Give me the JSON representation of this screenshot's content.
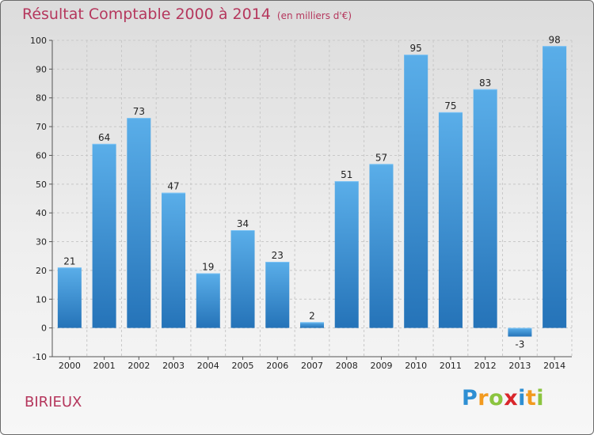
{
  "chart_data": {
    "type": "bar",
    "title": "Résultat Comptable 2000 à 2014",
    "subtitle": "(en milliers d'€)",
    "categories": [
      "2000",
      "2001",
      "2002",
      "2003",
      "2004",
      "2005",
      "2006",
      "2007",
      "2008",
      "2009",
      "2010",
      "2011",
      "2012",
      "2013",
      "2014"
    ],
    "values": [
      21,
      64,
      73,
      47,
      19,
      34,
      23,
      2,
      51,
      57,
      95,
      75,
      83,
      -3,
      98
    ],
    "ylim": [
      -10,
      100
    ],
    "yticks": [
      -10,
      0,
      10,
      20,
      30,
      40,
      50,
      60,
      70,
      80,
      90,
      100
    ],
    "xlabel": "",
    "ylabel": "",
    "grid": true,
    "bar_color": "#3f95d8"
  },
  "commune": "BIRIEUX",
  "logo": {
    "letters": [
      "P",
      "r",
      "o",
      "x",
      "i",
      "t",
      "i"
    ],
    "colors": [
      "#2e8fd3",
      "#f29a1f",
      "#8bc43f",
      "#d9262b",
      "#2e8fd3",
      "#f29a1f",
      "#8bc43f"
    ]
  }
}
